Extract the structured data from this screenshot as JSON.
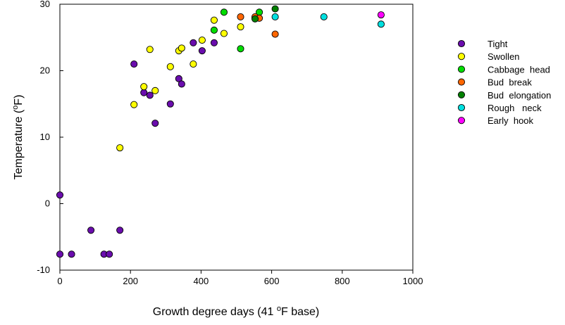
{
  "chart_data": {
    "type": "scatter",
    "xlabel": "Growth  degree  days  (41 °F base)",
    "ylabel": "Temperature  (°F)",
    "xlim": [
      0,
      1000
    ],
    "ylim": [
      -10,
      30
    ],
    "x_ticks": [
      "0",
      "200",
      "400",
      "600",
      "800",
      "1000"
    ],
    "y_ticks": [
      "-10",
      "0",
      "10",
      "20",
      "30"
    ],
    "grid": false,
    "legend_position": "right",
    "series": [
      {
        "name": "Tight",
        "color": "#6a0dad",
        "points": [
          [
            0,
            1.3
          ],
          [
            0,
            -7.6
          ],
          [
            33,
            -7.6
          ],
          [
            88,
            -4
          ],
          [
            125,
            -7.6
          ],
          [
            140,
            -7.6
          ],
          [
            170,
            -4
          ],
          [
            210,
            21
          ],
          [
            238,
            16.7
          ],
          [
            255,
            16.3
          ],
          [
            270,
            12.1
          ],
          [
            313,
            15
          ],
          [
            337,
            18.8
          ],
          [
            345,
            18
          ],
          [
            378,
            24.2
          ],
          [
            403,
            23
          ],
          [
            437,
            24.2
          ]
        ]
      },
      {
        "name": "Swollen",
        "color": "#ffff00",
        "points": [
          [
            170,
            8.4
          ],
          [
            210,
            14.9
          ],
          [
            238,
            17.6
          ],
          [
            255,
            23.2
          ],
          [
            270,
            17
          ],
          [
            313,
            20.6
          ],
          [
            337,
            23
          ],
          [
            345,
            23.4
          ],
          [
            378,
            21
          ],
          [
            403,
            24.6
          ],
          [
            437,
            27.6
          ],
          [
            465,
            25.6
          ],
          [
            512,
            26.6
          ]
        ]
      },
      {
        "name": "Cabbage  head",
        "color": "#00dd00",
        "points": [
          [
            437,
            26.1
          ],
          [
            465,
            28.8
          ],
          [
            512,
            23.3
          ],
          [
            553,
            27.9
          ],
          [
            565,
            28.8
          ]
        ]
      },
      {
        "name": "Bud  break",
        "color": "#ff6600",
        "points": [
          [
            512,
            28.1
          ],
          [
            553,
            28.1
          ],
          [
            565,
            27.9
          ],
          [
            610,
            25.5
          ]
        ]
      },
      {
        "name": "Bud  elongation",
        "color": "#008000",
        "points": [
          [
            553,
            27.8
          ],
          [
            610,
            29.3
          ]
        ]
      },
      {
        "name": "Rough   neck",
        "color": "#00e0e0",
        "points": [
          [
            610,
            28.1
          ],
          [
            748,
            28.1
          ],
          [
            910,
            27
          ]
        ]
      },
      {
        "name": "Early  hook",
        "color": "#ff00ff",
        "points": [
          [
            910,
            28.4
          ]
        ]
      }
    ]
  }
}
